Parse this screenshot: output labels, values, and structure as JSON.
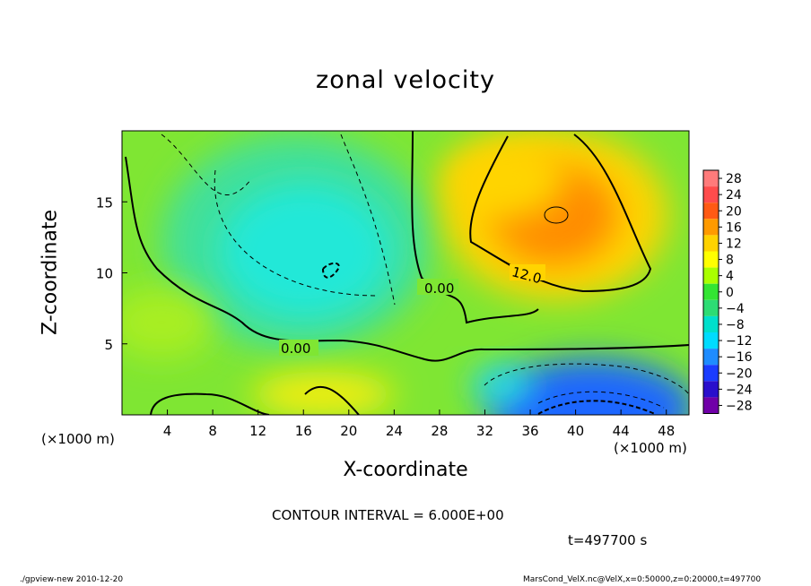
{
  "chart_data": {
    "type": "heatmap",
    "title": "zonal velocity",
    "xlabel": "X-coordinate",
    "ylabel": "Z-coordinate",
    "x_unit_label": "(×1000 m)",
    "xlim": [
      0,
      50
    ],
    "ylim": [
      0,
      20
    ],
    "x_ticks": [
      4,
      8,
      12,
      16,
      20,
      24,
      28,
      32,
      36,
      40,
      44,
      48
    ],
    "y_ticks": [
      5,
      10,
      15
    ],
    "contour_interval_text": "CONTOUR INTERVAL = 6.000E+00",
    "contour_labels": [
      "0.00",
      "0.00",
      "12.0"
    ],
    "colorbar": {
      "levels": [
        28,
        24,
        20,
        16,
        12,
        8,
        4,
        0,
        -4,
        -8,
        -12,
        -16,
        -20,
        -24,
        -28
      ],
      "colors": [
        "#ff7b7b",
        "#ff4c4c",
        "#ff5a14",
        "#ff9a00",
        "#ffd200",
        "#ffff00",
        "#aaff00",
        "#33e533",
        "#2ddc74",
        "#00e0cc",
        "#00dcff",
        "#1e8cff",
        "#1a3cff",
        "#2a0fcc",
        "#7000a8"
      ]
    },
    "blobs": [
      {
        "name": "background",
        "x": 25,
        "y": 10,
        "value": 2
      },
      {
        "name": "upper-left-trough",
        "x": 18,
        "y": 12,
        "value": -8
      },
      {
        "name": "jet-core",
        "x": 38,
        "y": 14,
        "value": 17
      },
      {
        "name": "surface-trough",
        "x": 42,
        "y": 2,
        "value": -20
      },
      {
        "name": "surface-bump",
        "x": 18,
        "y": 2,
        "value": 8
      }
    ]
  },
  "annotations": {
    "timestamp": "t=497700 s",
    "footer_left": "./gpview-new   2010-12-20",
    "footer_right": "MarsCond_VelX.nc@VelX,x=0:50000,z=0:20000,t=497700"
  }
}
